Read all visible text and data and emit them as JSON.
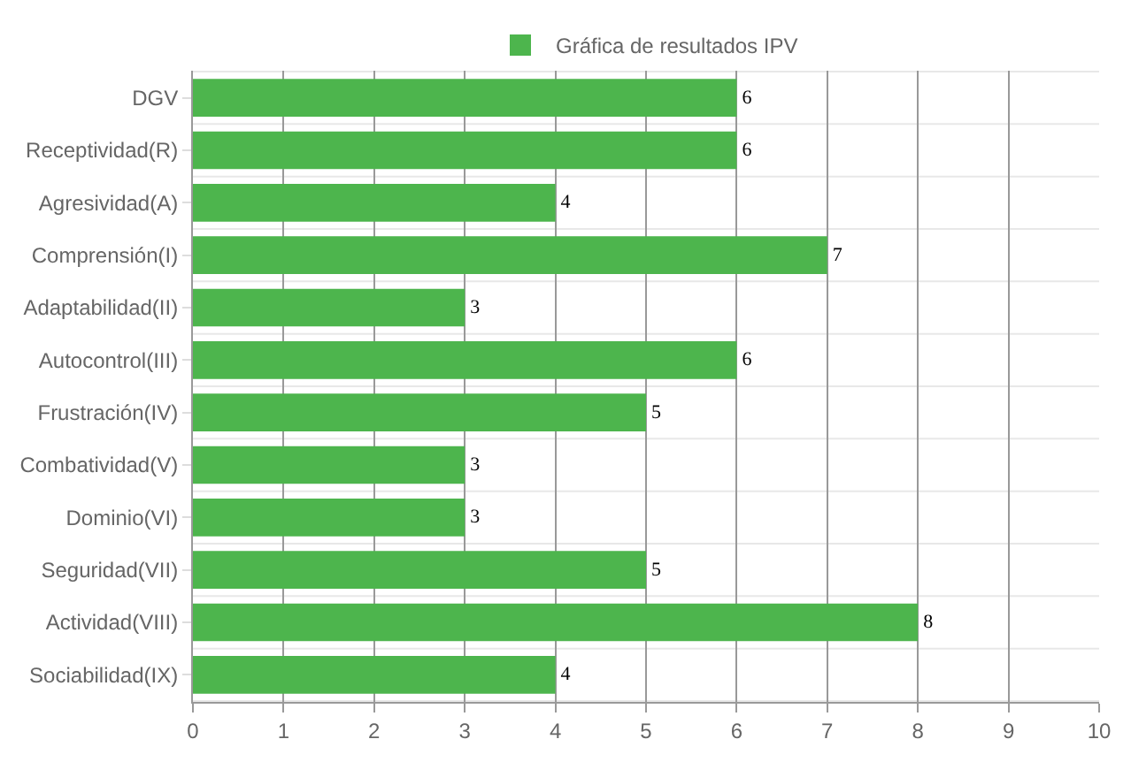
{
  "chart_data": {
    "type": "bar",
    "orientation": "horizontal",
    "categories": [
      "DGV",
      "Receptividad(R)",
      "Agresividad(A)",
      "Comprensión(I)",
      "Adaptabilidad(II)",
      "Autocontrol(III)",
      "Frustración(IV)",
      "Combatividad(V)",
      "Dominio(VI)",
      "Seguridad(VII)",
      "Actividad(VIII)",
      "Sociabilidad(IX)"
    ],
    "series": [
      {
        "name": "Gráfica de resultados IPV",
        "color": "#4db54d",
        "values": [
          6,
          6,
          4,
          7,
          3,
          6,
          5,
          3,
          3,
          5,
          8,
          4
        ]
      }
    ],
    "xlim": [
      0,
      10
    ],
    "xticks": [
      0,
      1,
      2,
      3,
      4,
      5,
      6,
      7,
      8,
      9,
      10
    ],
    "grid": true,
    "legend": "top",
    "data_labels": true
  }
}
